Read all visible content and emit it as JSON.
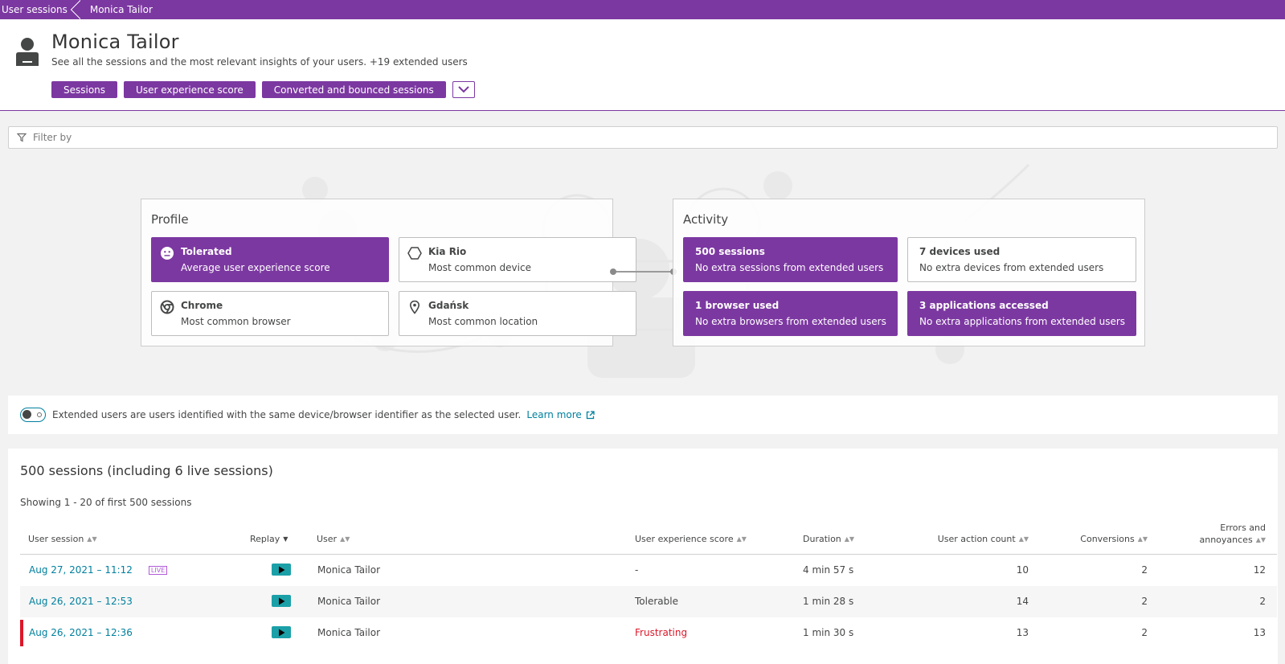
{
  "breadcrumb": {
    "items": [
      "User sessions",
      "Monica Tailor"
    ]
  },
  "header": {
    "title": "Monica Tailor",
    "subtitle": "See all the sessions and the most relevant insights of your users. +19 extended users",
    "chips": [
      "Sessions",
      "User experience score",
      "Converted and bounced sessions"
    ]
  },
  "filter": {
    "placeholder": "Filter by"
  },
  "profile": {
    "title": "Profile",
    "tiles": [
      {
        "main": "Tolerated",
        "sub": "Average user experience score",
        "icon": "neutral-face-icon"
      },
      {
        "main": "Kia Rio",
        "sub": "Most common device",
        "icon": "hexagon-device-icon"
      },
      {
        "main": "Chrome",
        "sub": "Most common browser",
        "icon": "chrome-icon"
      },
      {
        "main": "Gdańsk",
        "sub": "Most common location",
        "icon": "location-pin-icon"
      }
    ]
  },
  "activity": {
    "title": "Activity",
    "tiles": [
      {
        "main": "500 sessions",
        "sub": "No extra sessions from extended users"
      },
      {
        "main": "7 devices used",
        "sub": "No extra devices from extended users"
      },
      {
        "main": "1 browser used",
        "sub": "No extra browsers from extended users"
      },
      {
        "main": "3 applications accessed",
        "sub": "No extra applications from extended users"
      }
    ]
  },
  "extended": {
    "text": "Extended users are users identified with the same device/browser identifier as the selected user.",
    "learn_more": "Learn more"
  },
  "sessions": {
    "title": "500 sessions (including 6 live sessions)",
    "showing": "Showing 1 - 20 of first 500 sessions",
    "columns": {
      "user_session": "User session",
      "replay": "Replay",
      "user": "User",
      "ux_score": "User experience score",
      "duration": "Duration",
      "action_count": "User action count",
      "conversions": "Conversions",
      "errors_1": "Errors and",
      "errors_2": "annoyances"
    },
    "live_badge": "LIVE",
    "rows": [
      {
        "session": "Aug 27, 2021  –  11:12",
        "user": "Monica Tailor",
        "ux": "-",
        "duration": "4 min 57 s",
        "actions": "10",
        "conversions": "2",
        "errors": "12"
      },
      {
        "session": "Aug 26, 2021  –  12:53",
        "user": "Monica Tailor",
        "ux": "Tolerable",
        "duration": "1 min 28 s",
        "actions": "14",
        "conversions": "2",
        "errors": "2"
      },
      {
        "session": "Aug 26, 2021  –  12:36",
        "user": "Monica Tailor",
        "ux": "Frustrating",
        "duration": "1 min 30 s",
        "actions": "13",
        "conversions": "2",
        "errors": "13"
      }
    ]
  },
  "colors": {
    "accent": "#7c38a1",
    "link": "#00809e",
    "replay": "#1ba0a8",
    "frustrating": "#dc172a"
  }
}
